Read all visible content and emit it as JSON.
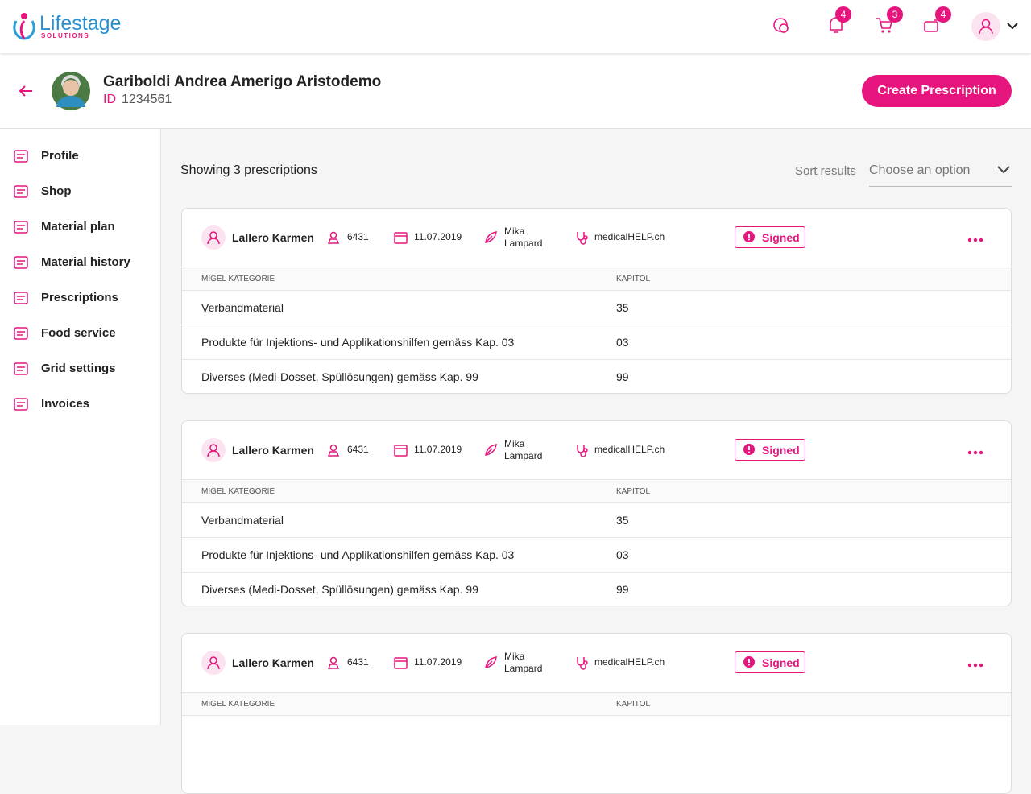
{
  "header": {
    "logo": "Lifestage",
    "logo_sub": "SOLUTIONS",
    "badges": {
      "notifications": 4,
      "cart": 3,
      "deliveries": 4
    }
  },
  "patient": {
    "name": "Gariboldi Andrea Amerigo Aristodemo",
    "id_label": "ID",
    "id": "1234561"
  },
  "create_button": "Create Prescription",
  "sidebar": [
    "Profile",
    "Shop",
    "Material plan",
    "Material history",
    "Prescriptions",
    "Food service",
    "Grid settings",
    "Invoices"
  ],
  "toolbar": {
    "showing": "Showing 3 prescriptions",
    "sort_label": "Sort results",
    "sort_placeholder": "Choose an option"
  },
  "prescriptions": [
    {
      "patient": "Lallero Karmen",
      "code": "6431",
      "date": "11.07.2019",
      "doctor": "Mika Lampard",
      "provider": "medicalHELP.ch",
      "status": "Signed",
      "columns": [
        "MIGEL KATEGORIE",
        "KAPITOL"
      ],
      "rows": [
        [
          "Verbandmaterial",
          "35"
        ],
        [
          "Produkte für Injektions- und Applikationshilfen gemäss Kap. 03",
          "03"
        ],
        [
          "Diverses (Medi-Dosset, Spüllösungen) gemäss Kap. 99",
          "99"
        ]
      ]
    },
    {
      "patient": "Lallero Karmen",
      "code": "6431",
      "date": "11.07.2019",
      "doctor": "Mika Lampard",
      "provider": "medicalHELP.ch",
      "status": "Signed",
      "columns": [
        "MIGEL KATEGORIE",
        "KAPITOL"
      ],
      "rows": [
        [
          "Verbandmaterial",
          "35"
        ],
        [
          "Produkte für Injektions- und Applikationshilfen gemäss Kap. 03",
          "03"
        ],
        [
          "Diverses (Medi-Dosset, Spüllösungen) gemäss Kap. 99",
          "99"
        ]
      ]
    },
    {
      "patient": "Lallero Karmen",
      "code": "6431",
      "date": "11.07.2019",
      "doctor": "Mika Lampard",
      "provider": "medicalHELP.ch",
      "status": "Signed",
      "columns": [
        "MIGEL KATEGORIE",
        "KAPITOL"
      ]
    }
  ]
}
